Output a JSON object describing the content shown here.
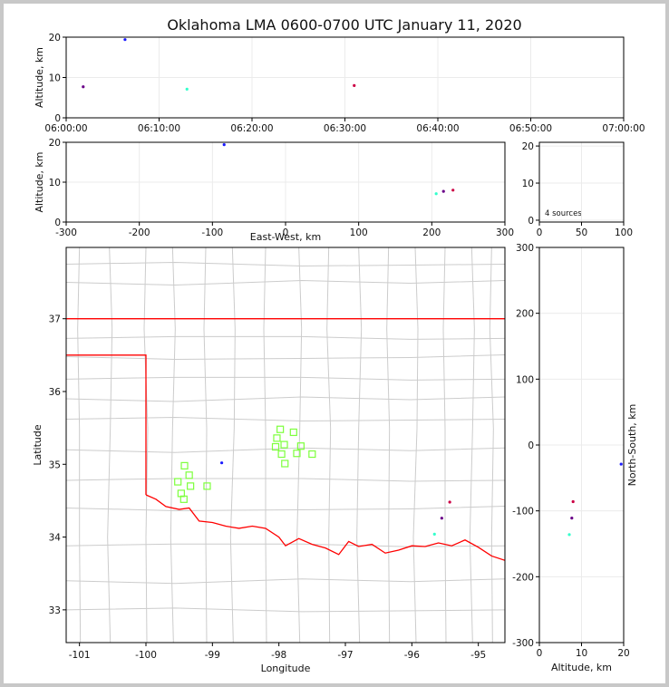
{
  "title": "Oklahoma LMA 0600-0700 UTC January 11, 2020",
  "sources_note": "4 sources",
  "colors": {
    "state_border": "#ff0000",
    "county_lines": "#cccccc",
    "grid": "#ebebeb",
    "box_markers": "#7dff3c"
  },
  "chart_data": [
    {
      "type": "scatter",
      "panel": "altitude-vs-time",
      "ylabel": "Altitude, km",
      "xlim": [
        "06:00:00",
        "07:00:00"
      ],
      "ylim": [
        0,
        20
      ],
      "xticks": [
        "06:00:00",
        "06:10:00",
        "06:20:00",
        "06:30:00",
        "06:40:00",
        "06:50:00",
        "07:00:00"
      ],
      "yticks": [
        "0",
        "10",
        "20"
      ],
      "grid": true,
      "points": [
        {
          "t": "06:01:50",
          "alt": 7.7,
          "color": "#6a0088"
        },
        {
          "t": "06:06:20",
          "alt": 19.4,
          "color": "#1a1aff"
        },
        {
          "t": "06:13:00",
          "alt": 7.1,
          "color": "#33ffcc"
        },
        {
          "t": "06:31:00",
          "alt": 8.0,
          "color": "#cc0044"
        }
      ]
    },
    {
      "type": "scatter",
      "panel": "altitude-vs-east-west",
      "xlabel": "East-West, km",
      "ylabel": "Altitude, km",
      "xlim": [
        -300,
        300
      ],
      "ylim": [
        0,
        20
      ],
      "xticks": [
        "-300",
        "-200",
        "-100",
        "0",
        "100",
        "200",
        "300"
      ],
      "yticks": [
        "0",
        "10",
        "20"
      ],
      "grid": true,
      "points": [
        {
          "x": -84,
          "alt": 19.4,
          "color": "#1a1aff"
        },
        {
          "x": 206,
          "alt": 7.1,
          "color": "#33ffcc"
        },
        {
          "x": 216,
          "alt": 7.7,
          "color": "#6a0088"
        },
        {
          "x": 229,
          "alt": 8.0,
          "color": "#cc0044"
        }
      ]
    },
    {
      "type": "bar",
      "panel": "altitude-histogram",
      "xlim": [
        0,
        100
      ],
      "ylim": [
        0,
        20
      ],
      "xticks": [
        "0",
        "50",
        "100"
      ],
      "yticks": [
        "0",
        "10",
        "20"
      ],
      "grid": true,
      "values": []
    },
    {
      "type": "scatter",
      "panel": "plan-view-map",
      "xlabel": "Longitude",
      "ylabel": "Latitude",
      "xlim": [
        -101.2,
        -94.6
      ],
      "ylim": [
        32.55,
        37.98
      ],
      "xticks": [
        "-101",
        "-100",
        "-99",
        "-98",
        "-97",
        "-96",
        "-95"
      ],
      "yticks": [
        "33",
        "34",
        "35",
        "36",
        "37"
      ],
      "points": [
        {
          "lon": -98.86,
          "lat": 35.02,
          "color": "#1a1aff"
        },
        {
          "lon": -95.55,
          "lat": 34.26,
          "color": "#6a0088"
        },
        {
          "lon": -95.43,
          "lat": 34.48,
          "color": "#cc0044"
        },
        {
          "lon": -95.66,
          "lat": 34.04,
          "color": "#33ffcc"
        }
      ],
      "stations": [
        {
          "lon": -97.98,
          "lat": 35.48
        },
        {
          "lon": -98.03,
          "lat": 35.36
        },
        {
          "lon": -97.78,
          "lat": 35.44
        },
        {
          "lon": -97.92,
          "lat": 35.27
        },
        {
          "lon": -98.05,
          "lat": 35.24
        },
        {
          "lon": -97.67,
          "lat": 35.25
        },
        {
          "lon": -97.96,
          "lat": 35.14
        },
        {
          "lon": -97.73,
          "lat": 35.15
        },
        {
          "lon": -97.5,
          "lat": 35.14
        },
        {
          "lon": -97.91,
          "lat": 35.01
        },
        {
          "lon": -99.42,
          "lat": 34.98
        },
        {
          "lon": -99.35,
          "lat": 34.85
        },
        {
          "lon": -99.52,
          "lat": 34.76
        },
        {
          "lon": -99.33,
          "lat": 34.7
        },
        {
          "lon": -99.08,
          "lat": 34.7
        },
        {
          "lon": -99.47,
          "lat": 34.6
        },
        {
          "lon": -99.43,
          "lat": 34.52
        }
      ]
    },
    {
      "type": "scatter",
      "panel": "north-south-vs-altitude",
      "xlabel": "Altitude, km",
      "ylabel": "North-South, km",
      "xlim": [
        0,
        20
      ],
      "ylim": [
        -300,
        300
      ],
      "xticks": [
        "0",
        "10",
        "20"
      ],
      "yticks": [
        "-300",
        "-200",
        "-100",
        "0",
        "100",
        "200",
        "300"
      ],
      "grid": true,
      "points": [
        {
          "alt": 19.4,
          "y": -29,
          "color": "#1a1aff"
        },
        {
          "alt": 8.0,
          "y": -86,
          "color": "#cc0044"
        },
        {
          "alt": 7.7,
          "y": -111,
          "color": "#6a0088"
        },
        {
          "alt": 7.1,
          "y": -136,
          "color": "#33ffcc"
        }
      ]
    }
  ]
}
